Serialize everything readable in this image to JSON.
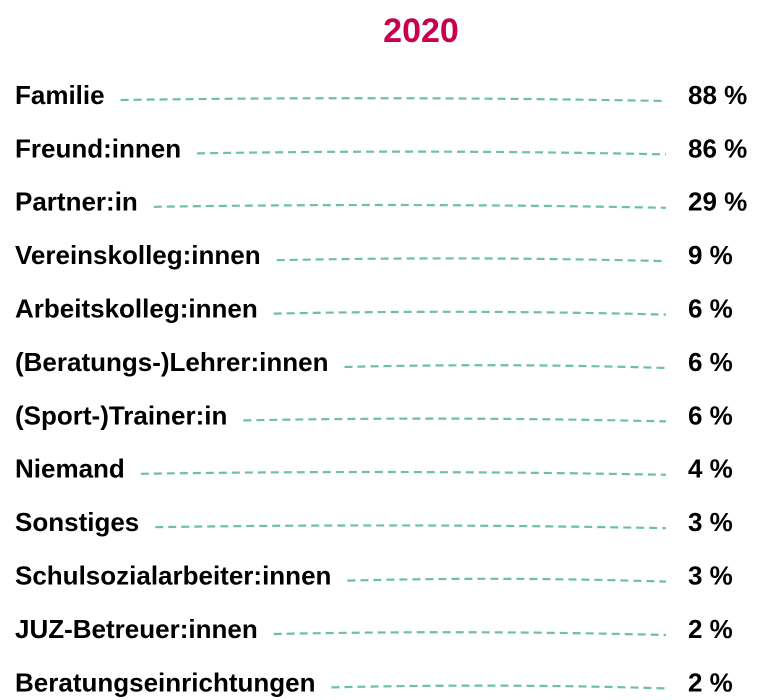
{
  "title": "2020",
  "items": [
    {
      "label": "Familie",
      "value": "88 %"
    },
    {
      "label": "Freund:innen",
      "value": "86 %"
    },
    {
      "label": "Partner:in",
      "value": "29 %"
    },
    {
      "label": "Vereinskolleg:innen",
      "value": "9 %"
    },
    {
      "label": "Arbeitskolleg:innen",
      "value": "6 %"
    },
    {
      "label": "(Beratungs-)Lehrer:innen",
      "value": "6 %"
    },
    {
      "label": "(Sport-)Trainer:in",
      "value": "6 %"
    },
    {
      "label": "Niemand",
      "value": "4 %"
    },
    {
      "label": "Sonstiges",
      "value": "3 %"
    },
    {
      "label": "Schulsozialarbeiter:innen",
      "value": "3 %"
    },
    {
      "label": "JUZ-Betreuer:innen",
      "value": "2 %"
    },
    {
      "label": "Beratungseinrichtungen",
      "value": "2 %"
    }
  ]
}
